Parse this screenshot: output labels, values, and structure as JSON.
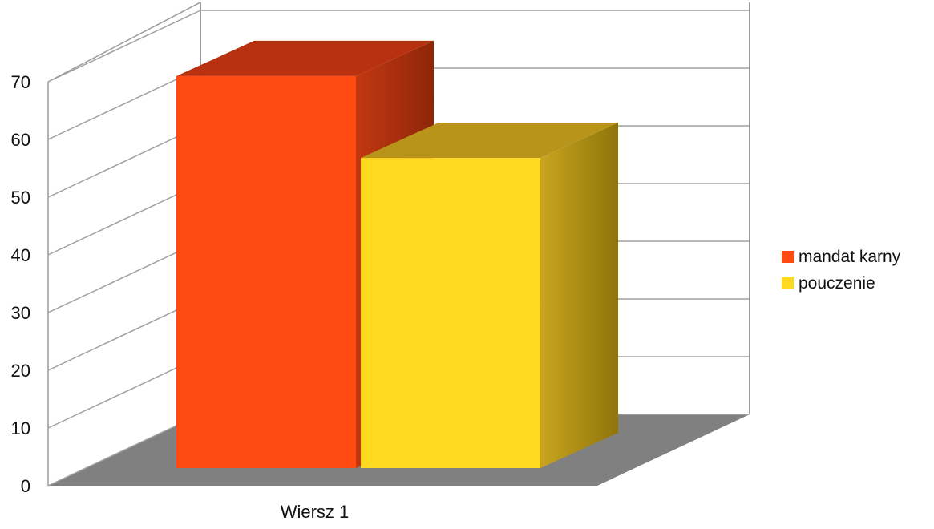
{
  "chart_data": {
    "type": "bar",
    "categories": [
      "Wiersz 1"
    ],
    "series": [
      {
        "name": "mandat karny",
        "values": [
          67
        ],
        "color": "#FF4A12"
      },
      {
        "name": "pouczenie",
        "values": [
          53
        ],
        "color": "#FFD820"
      }
    ],
    "title": "",
    "xlabel": "",
    "ylabel": "",
    "ylim": [
      0,
      70
    ],
    "yticks": [
      0,
      10,
      20,
      30,
      40,
      50,
      60,
      70
    ],
    "grid": true,
    "style": "3d",
    "legend_position": "right",
    "floor_color": "#808080"
  }
}
